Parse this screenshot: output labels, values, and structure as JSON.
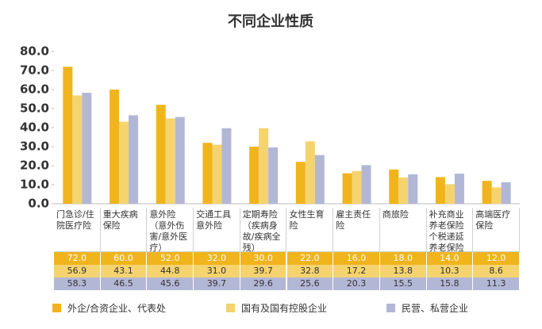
{
  "chart_data": {
    "type": "bar",
    "title": "不同企业性质",
    "categories": [
      "门急诊/住院医疗险",
      "重大疾病保险",
      "意外险（意外伤害/意外医疗）",
      "交通工具意外险",
      "定期寿险（疾病身故/疾病全残）",
      "女性生育险",
      "雇主责任险",
      "商旅险",
      "补充商业养老保险个税递延养老保险",
      "高端医疗保险"
    ],
    "series": [
      {
        "name": "外企/合资企业、代表处",
        "color": "#f0b41c",
        "values": [
          72.0,
          60.0,
          52.0,
          32.0,
          30.0,
          22.0,
          16.0,
          18.0,
          14.0,
          12.0
        ],
        "value_labels": [
          "72.0",
          "60.0",
          "52.0",
          "32.0",
          "30.0",
          "22.0",
          "16.0",
          "18.0",
          "14.0",
          "12.0"
        ]
      },
      {
        "name": "国有及国有控股企业",
        "color": "#f5d36e",
        "values": [
          56.9,
          43.1,
          44.8,
          31.0,
          39.7,
          32.8,
          17.2,
          13.8,
          10.3,
          8.6
        ],
        "value_labels": [
          "56.9",
          "43.1",
          "44.8",
          "31.0",
          "39.7",
          "32.8",
          "17.2",
          "13.8",
          "10.3",
          "8.6"
        ]
      },
      {
        "name": "民营、私营企业",
        "color": "#b3b7d6",
        "values": [
          58.3,
          46.5,
          45.6,
          39.7,
          29.6,
          25.6,
          20.3,
          15.5,
          15.8,
          11.3
        ],
        "value_labels": [
          "58.3",
          "46.5",
          "45.6",
          "39.7",
          "29.6",
          "25.6",
          "20.3",
          "15.5",
          "15.8",
          "11.3"
        ]
      }
    ],
    "ylim": [
      0,
      80
    ],
    "yticks": [
      {
        "value": 0,
        "label": "0.0"
      },
      {
        "value": 10,
        "label": "10.0"
      },
      {
        "value": 20,
        "label": "20.0"
      },
      {
        "value": 30,
        "label": "30.0"
      },
      {
        "value": 40,
        "label": "40.0"
      },
      {
        "value": 50,
        "label": "50.0"
      },
      {
        "value": 60,
        "label": "60.0"
      },
      {
        "value": 70,
        "label": "70.0"
      },
      {
        "value": 80,
        "label": "80.0"
      }
    ]
  }
}
